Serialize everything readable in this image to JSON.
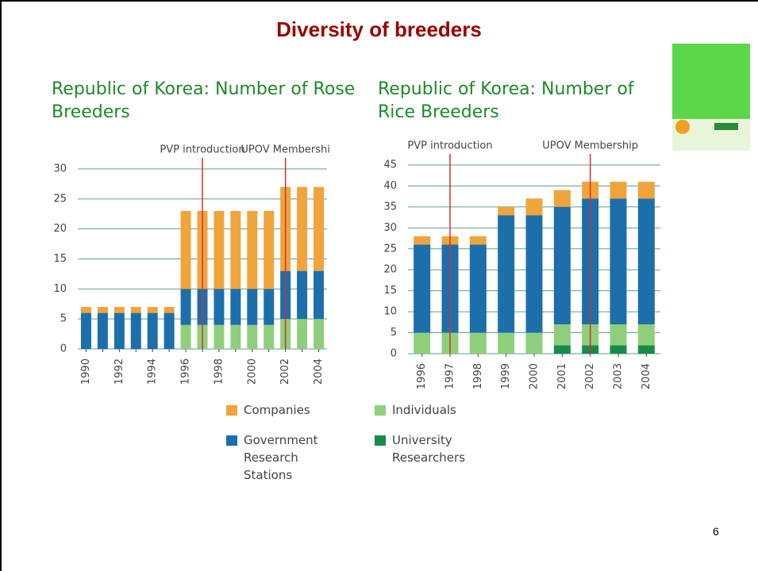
{
  "slide": {
    "title": "Diversity of breeders",
    "page_number": "6"
  },
  "chart_data": [
    {
      "type": "stacked-bar",
      "title": "Republic of Korea: Number of Rose Breeders",
      "x": [
        1990,
        1991,
        1992,
        1993,
        1994,
        1995,
        1996,
        1997,
        1998,
        1999,
        2000,
        2001,
        2002,
        2003,
        2004
      ],
      "xlim": [
        1989.5,
        2004.5
      ],
      "xticks": [
        1990,
        1992,
        1994,
        1996,
        1998,
        2000,
        2002,
        2004
      ],
      "ylim": [
        0,
        30
      ],
      "yticks": [
        0,
        5,
        10,
        15,
        20,
        25,
        30
      ],
      "grid": true,
      "series": [
        {
          "name": "Individuals",
          "color": "#8fcf7c",
          "values": [
            0,
            0,
            0,
            0,
            0,
            0,
            4,
            4,
            4,
            4,
            4,
            4,
            5,
            5,
            5
          ]
        },
        {
          "name": "Government Research Stations",
          "color": "#1c6fab",
          "values": [
            6,
            6,
            6,
            6,
            6,
            6,
            6,
            6,
            6,
            6,
            6,
            6,
            8,
            8,
            8
          ]
        },
        {
          "name": "Companies",
          "color": "#f0a43c",
          "values": [
            1,
            1,
            1,
            1,
            1,
            1,
            13,
            13,
            13,
            13,
            13,
            13,
            14,
            14,
            14
          ]
        }
      ],
      "annotations": [
        {
          "text": "PVP introduction",
          "x": 1997
        },
        {
          "text": "UPOV Membershi",
          "x": 2002
        }
      ]
    },
    {
      "type": "stacked-bar",
      "title": "Republic of Korea: Number of Rice Breeders",
      "x": [
        1996,
        1997,
        1998,
        1999,
        2000,
        2001,
        2002,
        2003,
        2004
      ],
      "xlim": [
        1995.5,
        2004.5
      ],
      "xticks": [
        1996,
        1997,
        1998,
        1999,
        2000,
        2001,
        2002,
        2003,
        2004
      ],
      "ylim": [
        0,
        45
      ],
      "yticks": [
        0,
        5,
        10,
        15,
        20,
        25,
        30,
        35,
        40,
        45
      ],
      "grid": true,
      "series": [
        {
          "name": "University Researchers",
          "color": "#1a8a4a",
          "values": [
            0,
            0,
            0,
            0,
            0,
            2,
            2,
            2,
            2
          ]
        },
        {
          "name": "Individuals",
          "color": "#8fcf7c",
          "values": [
            5,
            5,
            5,
            5,
            5,
            5,
            5,
            5,
            5
          ]
        },
        {
          "name": "Government Research Stations",
          "color": "#1c6fab",
          "values": [
            21,
            21,
            21,
            28,
            28,
            28,
            30,
            30,
            30
          ]
        },
        {
          "name": "Companies",
          "color": "#f0a43c",
          "values": [
            2,
            2,
            2,
            2,
            4,
            4,
            4,
            4,
            4
          ]
        }
      ],
      "annotations": [
        {
          "text": "PVP introduction",
          "x": 1997
        },
        {
          "text": "UPOV Membership",
          "x": 2002
        }
      ]
    }
  ]
}
